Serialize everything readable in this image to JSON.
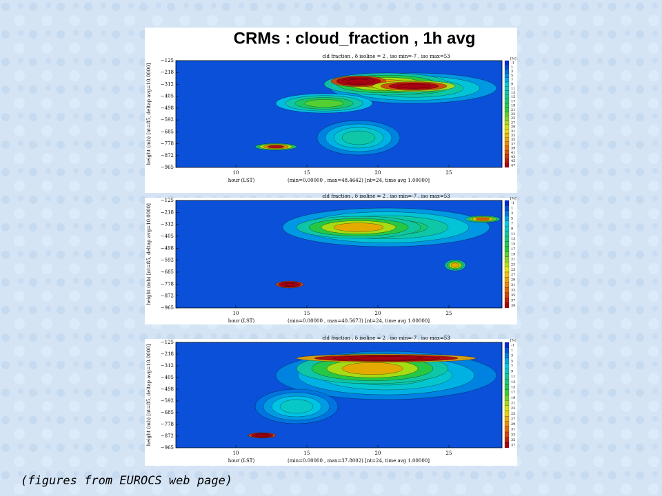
{
  "title": "CRMs : cloud_fraction , 1h avg",
  "panels": [
    {
      "header": "cld fraction , δ isoline = 2 , iso min=-7 , iso max=53",
      "yticks": [
        "−125",
        "−218",
        "−312",
        "−405",
        "−498",
        "−592",
        "−685",
        "−778",
        "−872",
        "−965"
      ],
      "ylabel": "height (mb)   [nt=85, deltap avg=10.0000]",
      "xticks": [
        "10",
        "15",
        "20",
        "25"
      ],
      "xlabel": "hour (LST)",
      "stats": "(min=0.00000 , max=48.4642)   [nt=24, time avg 1.00000]",
      "unit": "[%]",
      "levels": [
        "-1",
        "1",
        "3",
        "5",
        "7",
        "9",
        "11",
        "13",
        "15",
        "17",
        "19",
        "21",
        "23",
        "25",
        "27",
        "29",
        "31",
        "33",
        "35",
        "37",
        "39",
        "41",
        "43",
        "45",
        "47"
      ]
    },
    {
      "header": "cld fraction , δ isoline = 2 , iso min=-7 , iso max=53",
      "yticks": [
        "−125",
        "−218",
        "−312",
        "−405",
        "−498",
        "−592",
        "−685",
        "−778",
        "−872",
        "−965"
      ],
      "ylabel": "height (mb)   [nt=85, deltap avg=10.0000]",
      "xticks": [
        "10",
        "15",
        "20",
        "25"
      ],
      "xlabel": "hour (LST)",
      "stats": "(min=0.00000 , max=40.5673)   [nt=24, time avg 1.00000]",
      "unit": "[%]",
      "levels": [
        "-1",
        "1",
        "3",
        "5",
        "7",
        "9",
        "11",
        "13",
        "15",
        "17",
        "19",
        "21",
        "23",
        "25",
        "27",
        "29",
        "31",
        "33",
        "35",
        "37",
        "39"
      ]
    },
    {
      "header": "cld fraction , δ isoline = 2 , iso min=-7 , iso max=53",
      "yticks": [
        "−125",
        "−218",
        "−312",
        "−405",
        "−498",
        "−592",
        "−685",
        "−778",
        "−872",
        "−965"
      ],
      "ylabel": "height (mb)   [nt=85, deltap avg=10.0000]",
      "xticks": [
        "10",
        "15",
        "20",
        "25"
      ],
      "xlabel": "hour (LST)",
      "stats": "(min=0.00000 , max=37.8002)   [nt=24, time avg 1.00000]",
      "unit": "[%]",
      "levels": [
        "-1",
        "1",
        "3",
        "5",
        "7",
        "9",
        "11",
        "13",
        "15",
        "17",
        "19",
        "21",
        "23",
        "25",
        "27",
        "29",
        "31",
        "33",
        "35",
        "37"
      ]
    }
  ],
  "caption": "(figures from EUROCS web page)"
}
